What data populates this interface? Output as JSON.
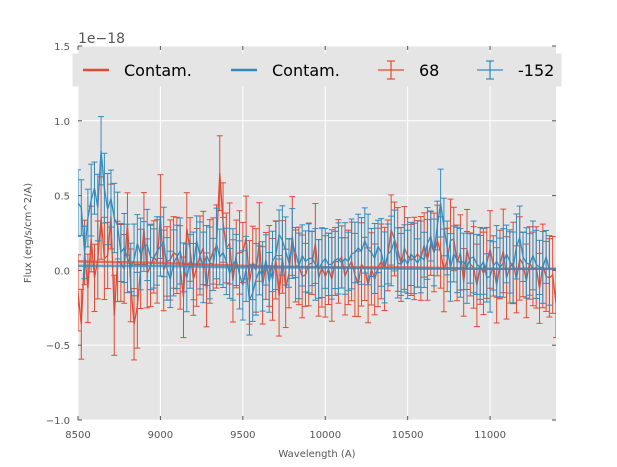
{
  "chart_data": {
    "type": "line",
    "title": "",
    "xlabel": "Wavelength (A)",
    "ylabel": "Flux (erg/s/cm^2/A)",
    "y_offset_text": "1e−18",
    "xlim": [
      8500,
      11400
    ],
    "ylim": [
      -1.0,
      1.5
    ],
    "xticks": [
      8500,
      9000,
      9500,
      10000,
      10500,
      11000
    ],
    "xtick_labels": [
      "8500",
      "9000",
      "9500",
      "10000",
      "10500",
      "11000"
    ],
    "yticks": [
      -1.0,
      -0.5,
      0.0,
      0.5,
      1.0,
      1.5
    ],
    "ytick_labels": [
      "−1.0",
      "−0.5",
      "0.0",
      "0.5",
      "1.0",
      "1.5"
    ],
    "grid": true,
    "legend_position": "top",
    "colors": {
      "red": "#E24A33",
      "blue": "#348ABD",
      "background": "#E5E5E5",
      "grid": "#FFFFFF"
    },
    "series": [
      {
        "name": "68",
        "color": "#E24A33",
        "kind": "errorbar",
        "x_start": 8500,
        "x_step": 20,
        "values": [
          -0.15,
          -0.36,
          0.12,
          -0.12,
          0.21,
          -0.05,
          0.07,
          0.35,
          0.08,
          0.1,
          0.36,
          -0.3,
          0.06,
          0.05,
          0.01,
          0.31,
          -0.1,
          -0.36,
          -0.24,
          0.01,
          0.28,
          -0.02,
          0.03,
          0.09,
          0.06,
          0.36,
          0.0,
          0.06,
          0.07,
          0.12,
          0.1,
          0.02,
          -0.18,
          0.28,
          0.14,
          -0.06,
          0.02,
          0.1,
          0.15,
          -0.13,
          0.06,
          0.13,
          0.16,
          0.65,
          0.32,
          0.15,
          0.18,
          -0.07,
          0.11,
          0.12,
          0.12,
          0.22,
          -0.08,
          0.05,
          0.0,
          0.19,
          -0.1,
          0.03,
          0.03,
          -0.06,
          0.07,
          -0.17,
          0.09,
          -0.12,
          -0.02,
          0.23,
          0.03,
          0.03,
          -0.04,
          -0.03,
          0.04,
          0.05,
          0.18,
          -0.05,
          0.02,
          -0.04,
          0.01,
          -0.06,
          0.06,
          0.06,
          0.09,
          -0.04,
          0.02,
          0.06,
          -0.03,
          -0.09,
          0.04,
          0.01,
          -0.1,
          0.01,
          -0.06,
          0.02,
          0.06,
          0.01,
          0.1,
          0.27,
          0.21,
          0.14,
          0.04,
          0.15,
          0.1,
          0.07,
          0.08,
          0.11,
          0.08,
          0.17,
          0.07,
          0.18,
          0.12,
          0.2,
          0.12,
          0.0,
          0.07,
          0.2,
          0.21,
          0.05,
          0.12,
          -0.08,
          0.14,
          0.04,
          0.02,
          -0.1,
          0.03,
          -0.02,
          0.05,
          0.14,
          0.03,
          -0.1,
          0.04,
          0.13,
          -0.05,
          0.02,
          0.05,
          -0.06,
          0.08,
          0.04,
          -0.07,
          0.05,
          0.01,
          0.02,
          -0.12,
          0.03,
          -0.04,
          -0.05,
          -0.03,
          -0.22
        ]
      },
      {
        "name": "-152",
        "color": "#348ABD",
        "kind": "errorbar",
        "x_start": 8500,
        "x_step": 20,
        "values": [
          0.45,
          0.42,
          0.12,
          0.35,
          0.47,
          0.55,
          0.42,
          0.8,
          0.55,
          0.41,
          0.48,
          0.35,
          0.3,
          0.12,
          0.15,
          0.08,
          0.02,
          0.07,
          0.18,
          0.11,
          0.16,
          0.17,
          0.09,
          0.08,
          0.13,
          0.16,
          0.19,
          0.01,
          -0.06,
          0.05,
          0.09,
          0.13,
          0.02,
          -0.05,
          0.06,
          0.03,
          0.2,
          0.1,
          0.02,
          0.1,
          0.05,
          0.04,
          0.18,
          0.09,
          0.12,
          0.06,
          -0.02,
          0.04,
          0.07,
          -0.03,
          -0.1,
          0.01,
          -0.2,
          -0.15,
          -0.06,
          0.0,
          -0.04,
          0.07,
          -0.08,
          0.06,
          0.1,
          0.24,
          0.2,
          0.13,
          0.05,
          0.18,
          0.12,
          0.03,
          0.1,
          0.06,
          0.08,
          0.08,
          0.04,
          0.01,
          0.05,
          0.08,
          0.04,
          0.04,
          0.07,
          0.08,
          0.05,
          0.08,
          0.06,
          0.11,
          0.12,
          0.15,
          0.13,
          0.2,
          0.14,
          0.12,
          0.08,
          0.16,
          0.12,
          0.02,
          0.11,
          0.13,
          0.2,
          0.05,
          0.04,
          0.08,
          0.04,
          0.11,
          0.08,
          0.05,
          0.09,
          0.07,
          0.18,
          0.23,
          0.12,
          0.3,
          0.45,
          0.29,
          0.15,
          0.02,
          0.11,
          0.07,
          0.05,
          0.06,
          0.02,
          0.08,
          0.09,
          0.04,
          0.02,
          0.06,
          -0.05,
          -0.04,
          0.03,
          0.06,
          0.02,
          0.05,
          0.11,
          0.06,
          0.02,
          0.16,
          0.22,
          0.09,
          0.05,
          0.04,
          0.1,
          0.04,
          0.02,
          0.02,
          0.09,
          0.0
        ]
      },
      {
        "name": "Contam.",
        "color": "#E24A33",
        "kind": "line",
        "x": [
          8500,
          9000,
          9500,
          10000,
          10500,
          11000,
          11400
        ],
        "values": [
          0.06,
          0.05,
          0.03,
          0.02,
          0.02,
          0.01,
          0.01
        ]
      },
      {
        "name": "Contam.",
        "color": "#348ABD",
        "kind": "line",
        "x": [
          8500,
          9000,
          9500,
          10000,
          10500,
          11000,
          11400
        ],
        "values": [
          0.03,
          0.03,
          0.02,
          0.02,
          0.01,
          0.01,
          0.01
        ]
      }
    ],
    "legend": [
      "Contam.",
      "Contam.",
      "68",
      "-152"
    ]
  }
}
